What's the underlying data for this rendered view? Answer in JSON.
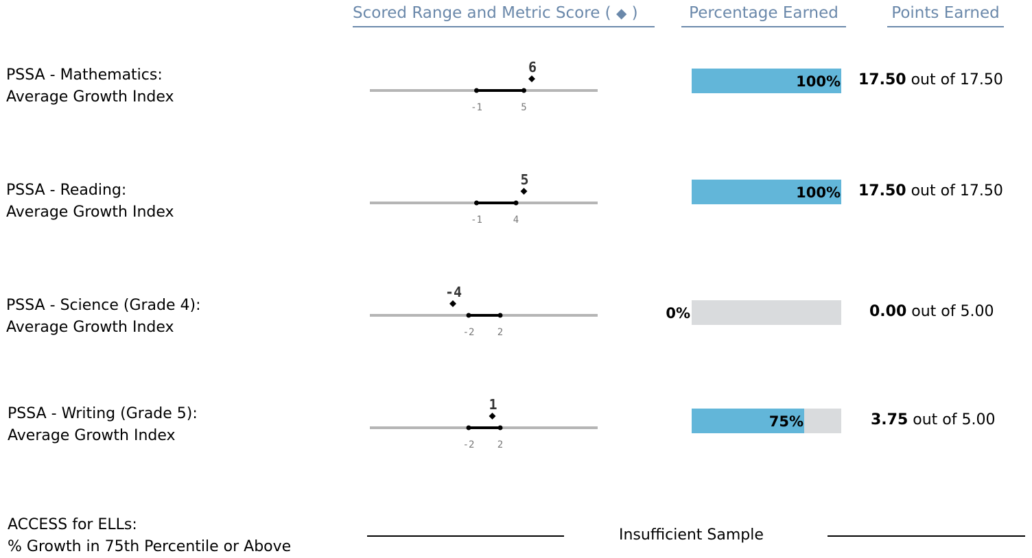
{
  "headers": {
    "scored_range": "Scored Range and Metric Score",
    "scored_range_symbol_open": "(",
    "scored_range_symbol": "◆",
    "scored_range_symbol_close": ")",
    "percentage": "Percentage Earned",
    "points": "Points Earned"
  },
  "rows": [
    {
      "label1": "PSSA - Mathematics:",
      "label2": "Average Growth Index",
      "range_low": -1,
      "range_high": 5,
      "score": 6,
      "range_low_text": "-1",
      "range_high_text": "5",
      "score_text": "6",
      "percent": 100,
      "percent_text": "100%",
      "points_earned": "17.50",
      "points_sep": "out of",
      "points_total": "17.50"
    },
    {
      "label1": "PSSA - Reading:",
      "label2": "Average Growth Index",
      "range_low": -1,
      "range_high": 4,
      "score": 5,
      "range_low_text": "-1",
      "range_high_text": "4",
      "score_text": "5",
      "percent": 100,
      "percent_text": "100%",
      "points_earned": "17.50",
      "points_sep": "out of",
      "points_total": "17.50"
    },
    {
      "label1": "PSSA - Science (Grade 4):",
      "label2": "Average Growth Index",
      "range_low": -2,
      "range_high": 2,
      "score": -4,
      "range_low_text": "-2",
      "range_high_text": "2",
      "score_text": "-4",
      "percent": 0,
      "percent_text": "0%",
      "points_earned": "0.00",
      "points_sep": "out of",
      "points_total": "5.00"
    },
    {
      "label1": "PSSA - Writing (Grade 5):",
      "label2": "Average Growth Index",
      "range_low": -2,
      "range_high": 2,
      "score": 1,
      "range_low_text": "-2",
      "range_high_text": "2",
      "score_text": "1",
      "percent": 75,
      "percent_text": "75%",
      "points_earned": "3.75",
      "points_sep": "out of",
      "points_total": "5.00"
    }
  ],
  "access": {
    "label1": "ACCESS for ELLs:",
    "label2": "% Growth in 75th Percentile or Above",
    "status": "Insufficient Sample"
  },
  "colors": {
    "header": "#6a88aa",
    "bar_fill": "#62b6d9",
    "bar_empty": "#d9dbdd",
    "scale_line": "#b5b5b5",
    "tick_text": "#777777"
  }
}
